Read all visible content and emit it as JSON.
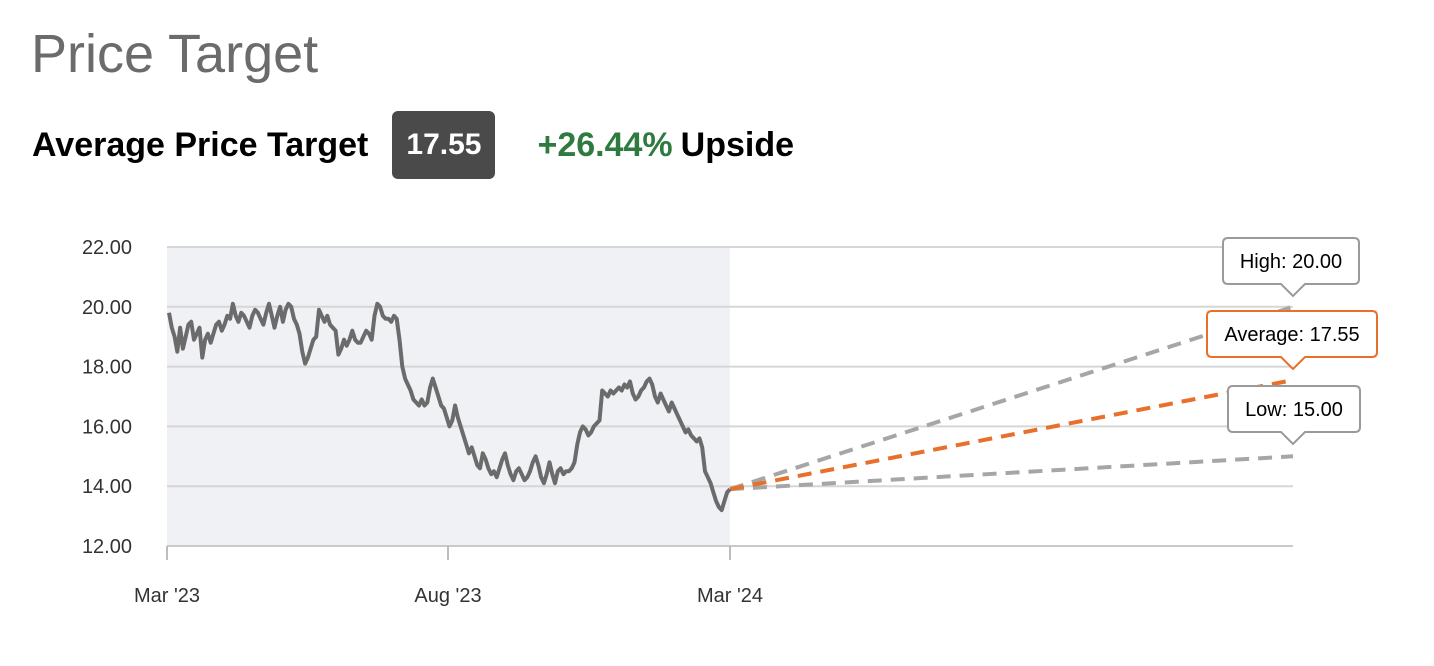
{
  "header": {
    "title": "Price Target",
    "avg_label": "Average Price Target",
    "avg_value": "17.55",
    "upside_pct": "+26.44%",
    "upside_word": "Upside"
  },
  "colors": {
    "price_line": "#6b6b6b",
    "history_band": "#f0f1f5",
    "average_projection": "#e8702a",
    "range_projection": "#a6a6a6",
    "grid": "#d6d6d6",
    "upside_green": "#2e7a3f"
  },
  "chart_data": {
    "type": "line",
    "x_tick_labels": [
      "Mar '23",
      "Aug '23",
      "Mar '24"
    ],
    "y_tick_labels": [
      "12.00",
      "14.00",
      "16.00",
      "18.00",
      "20.00",
      "22.00"
    ],
    "ylim": [
      12,
      22
    ],
    "grid": true,
    "shaded_history": true,
    "series": [
      {
        "values": [
          19.8,
          19.3,
          19.0,
          18.5,
          19.3,
          18.6,
          19.0,
          19.4,
          19.5,
          18.9,
          19.1,
          19.3,
          18.3,
          18.9,
          19.1,
          18.8,
          19.1,
          19.4,
          19.5,
          19.2,
          19.4,
          19.7,
          19.6,
          20.1,
          19.7,
          19.5,
          19.8,
          19.7,
          19.5,
          19.3,
          19.7,
          19.9,
          19.8,
          19.6,
          19.4,
          19.8,
          20.1,
          19.7,
          19.3,
          19.7,
          20.0,
          19.5,
          19.9,
          20.1,
          20.0,
          19.6,
          19.4,
          19.1,
          18.5,
          18.1,
          18.3,
          18.6,
          18.9,
          19.0,
          19.9,
          19.7,
          19.5,
          19.7,
          19.4,
          19.3,
          19.2,
          18.4,
          18.6,
          18.9,
          18.7,
          18.9,
          19.2,
          18.9,
          18.8,
          18.8,
          19.0,
          19.2,
          19.1,
          18.9,
          19.7,
          20.1,
          20.0,
          19.7,
          19.6,
          19.6,
          19.5,
          19.7,
          19.6,
          18.9,
          18.0,
          17.6,
          17.4,
          17.2,
          16.9,
          16.8,
          16.7,
          16.9,
          16.7,
          16.8,
          17.3,
          17.6,
          17.3,
          17.0,
          16.7,
          16.6,
          16.3,
          16.0,
          16.2,
          16.7,
          16.3,
          16.0,
          15.7,
          15.4,
          15.1,
          15.3,
          15.0,
          14.7,
          14.6,
          15.1,
          14.9,
          14.6,
          14.4,
          14.5,
          14.3,
          14.6,
          14.9,
          15.1,
          14.7,
          14.4,
          14.2,
          14.5,
          14.6,
          14.4,
          14.2,
          14.3,
          14.5,
          14.8,
          15.0,
          14.7,
          14.3,
          14.1,
          14.4,
          14.8,
          14.4,
          14.1,
          14.5,
          14.6,
          14.4,
          14.5,
          14.5,
          14.6,
          14.8,
          15.4,
          15.8,
          16.0,
          15.9,
          15.7,
          15.8,
          16.0,
          16.1,
          16.2,
          17.2,
          17.1,
          17.0,
          17.2,
          17.1,
          17.2,
          17.3,
          17.2,
          17.4,
          17.3,
          17.5,
          17.1,
          16.9,
          17.0,
          17.2,
          17.3,
          17.5,
          17.6,
          17.4,
          17.0,
          16.8,
          17.1,
          16.9,
          16.7,
          16.5,
          16.8,
          16.6,
          16.4,
          16.2,
          16.0,
          15.8,
          15.9,
          15.7,
          15.6,
          15.5,
          15.6,
          15.3,
          14.5,
          14.3,
          14.1,
          13.8,
          13.5,
          13.3,
          13.2,
          13.5,
          13.8,
          13.9
        ]
      }
    ],
    "projection": {
      "start_value": 13.9,
      "high": 20.0,
      "average": 17.55,
      "low": 15.0,
      "labels": {
        "high": "High: 20.00",
        "average": "Average: 17.55",
        "low": "Low: 15.00"
      }
    }
  }
}
